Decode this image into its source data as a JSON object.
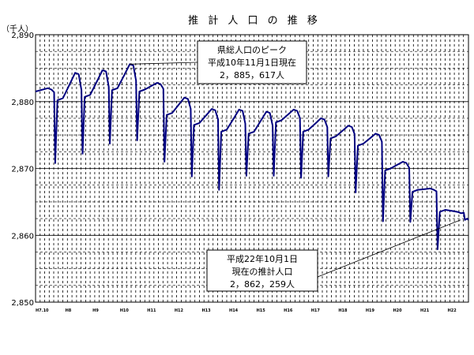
{
  "chart_data": {
    "type": "line",
    "title": "推 計 人 口 の 推 移",
    "ylabel": "（千人）",
    "ylim": [
      2850,
      2890
    ],
    "yticks": [
      "2,850",
      "2,860",
      "2,870",
      "2,880",
      "2,890"
    ],
    "yvalues": [
      2850,
      2860,
      2870,
      2880,
      2890
    ],
    "x_tick_labels": [
      "H7.10",
      "H8",
      "H9",
      "H10",
      "H11",
      "H12",
      "H13",
      "H14",
      "H15",
      "H16",
      "H17",
      "H18",
      "H19",
      "H20",
      "H21",
      "H22"
    ],
    "grid": true,
    "yearly_start_values": [
      2881.5,
      2880.5,
      2881.0,
      2882.0,
      2881.8,
      2878.3,
      2876.8,
      2875.8,
      2875.5,
      2877.2,
      2875.8,
      2874.8,
      2873.7,
      2870.0,
      2866.8,
      2863.8
    ],
    "yearly_peak_values": [
      2882.0,
      2884.3,
      2884.7,
      2885.6,
      2882.8,
      2880.6,
      2878.9,
      2878.8,
      2878.5,
      2878.8,
      2877.5,
      2876.4,
      2875.2,
      2871.0,
      2867.0,
      2863.5
    ],
    "yearly_dip_values": [
      2870.8,
      2872.2,
      2873.7,
      2874.2,
      2871.0,
      2868.8,
      2866.8,
      2868.9,
      2868.9,
      2868.6,
      2868.8,
      2866.4,
      2862.1,
      2862.0,
      2857.9,
      2862.3
    ],
    "annotations": [
      {
        "lines": [
          "県総人口のピーク",
          "平成10年11月1日現在",
          "2，885，617人"
        ]
      },
      {
        "lines": [
          "平成22年10月1日",
          "現在の推計人口",
          "2，862，259人"
        ]
      }
    ],
    "line_color": "#000080"
  }
}
